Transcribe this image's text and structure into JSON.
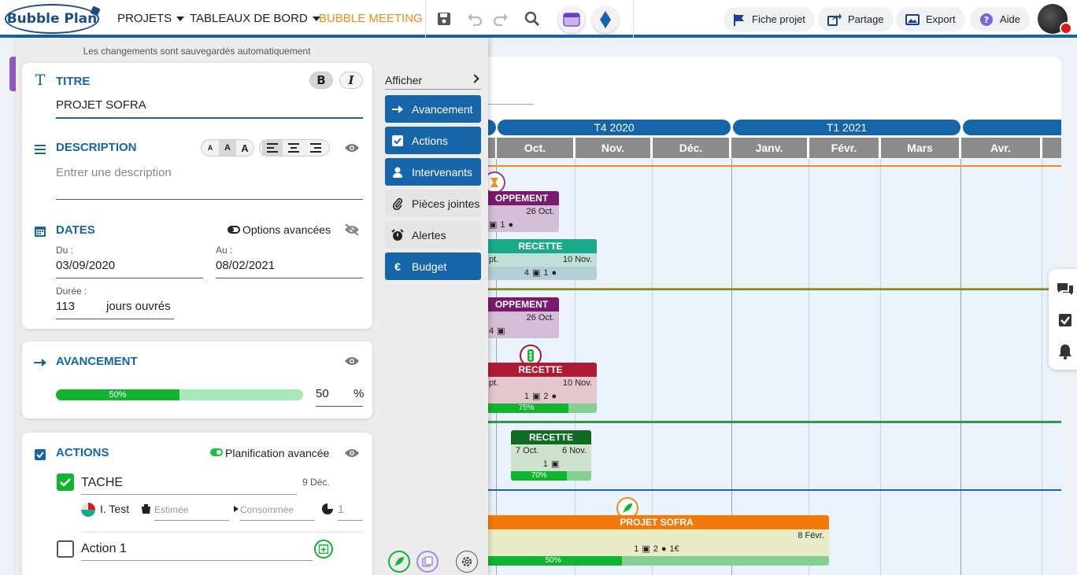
{
  "app": {
    "logo_text": "Bubble Plan"
  },
  "nav": {
    "projets": "PROJETS",
    "tableaux": "TABLEAUX DE BORD",
    "meeting": "BUBBLE MEETING"
  },
  "actions": {
    "fiche": "Fiche projet",
    "partage": "Partage",
    "export": "Export",
    "aide": "Aide"
  },
  "panel": {
    "autosave": "Les changements sont sauvegardés automatiquement",
    "titre": {
      "label": "TITRE",
      "value": "PROJET SOFRA"
    },
    "description": {
      "label": "DESCRIPTION",
      "placeholder": "Entrer une description"
    },
    "dates": {
      "label": "DATES",
      "options": "Options avancées",
      "du_label": "Du :",
      "du": "03/09/2020",
      "au_label": "Au :",
      "au": "08/02/2021",
      "duree_label": "Durée :",
      "duree": "113",
      "duree_unit": "jours ouvrés"
    },
    "avancement": {
      "label": "AVANCEMENT",
      "percent": 50,
      "percent_text": "50%",
      "value": "50",
      "unit": "%"
    },
    "actions": {
      "label": "ACTIONS",
      "planif": "Planification avancée",
      "tache": {
        "name": "TACHE",
        "date": "9 Déc.",
        "assignee": "I. Test",
        "estimee": "Estimée",
        "consommee": "Consommée",
        "count": "1"
      },
      "action1": {
        "name": "Action 1"
      }
    }
  },
  "menu": {
    "afficher": "Afficher",
    "items": [
      {
        "label": "Avancement",
        "on": true,
        "icon": "arrow-right-icon"
      },
      {
        "label": "Actions",
        "on": true,
        "icon": "checkbox-icon"
      },
      {
        "label": "Intervenants",
        "on": true,
        "icon": "user-icon"
      },
      {
        "label": "Pièces jointes",
        "on": false,
        "icon": "paperclip-icon"
      },
      {
        "label": "Alertes",
        "on": false,
        "icon": "alarm-icon"
      },
      {
        "label": "Budget",
        "on": true,
        "icon": "euro-icon"
      }
    ]
  },
  "gantt": {
    "quarters": [
      "T4 2020",
      "T1 2021"
    ],
    "months": [
      "Oct.",
      "Nov.",
      "Déc.",
      "Janv.",
      "Févr.",
      "Mars",
      "Avr."
    ],
    "tasks": {
      "t1": {
        "title": "OPPEMENT",
        "date": "26 Oct.",
        "counts": "1"
      },
      "t2": {
        "title": "RECETTE",
        "start": "pt.",
        "date": "10 Nov.",
        "c1": "4",
        "c2": "1"
      },
      "t3": {
        "title": "OPPEMENT",
        "date": "26 Oct.",
        "counts": "4"
      },
      "t4": {
        "title": "RECETTE",
        "start": "pt.",
        "date": "10 Nov.",
        "c1": "1",
        "c2": "2",
        "prog": "75%"
      },
      "t5": {
        "title": "RECETTE",
        "start": "7 Oct.",
        "date": "6 Nov.",
        "c1": "1",
        "prog": "70%"
      },
      "t6": {
        "title": "PROJET SOFRA",
        "date": "8 Févr.",
        "c1": "1",
        "c2": "2",
        "c3": "1€",
        "prog": "50%"
      }
    }
  },
  "colors": {
    "brand": "#1565a8",
    "accent_orange": "#f28a1b",
    "green": "#10b52d"
  }
}
